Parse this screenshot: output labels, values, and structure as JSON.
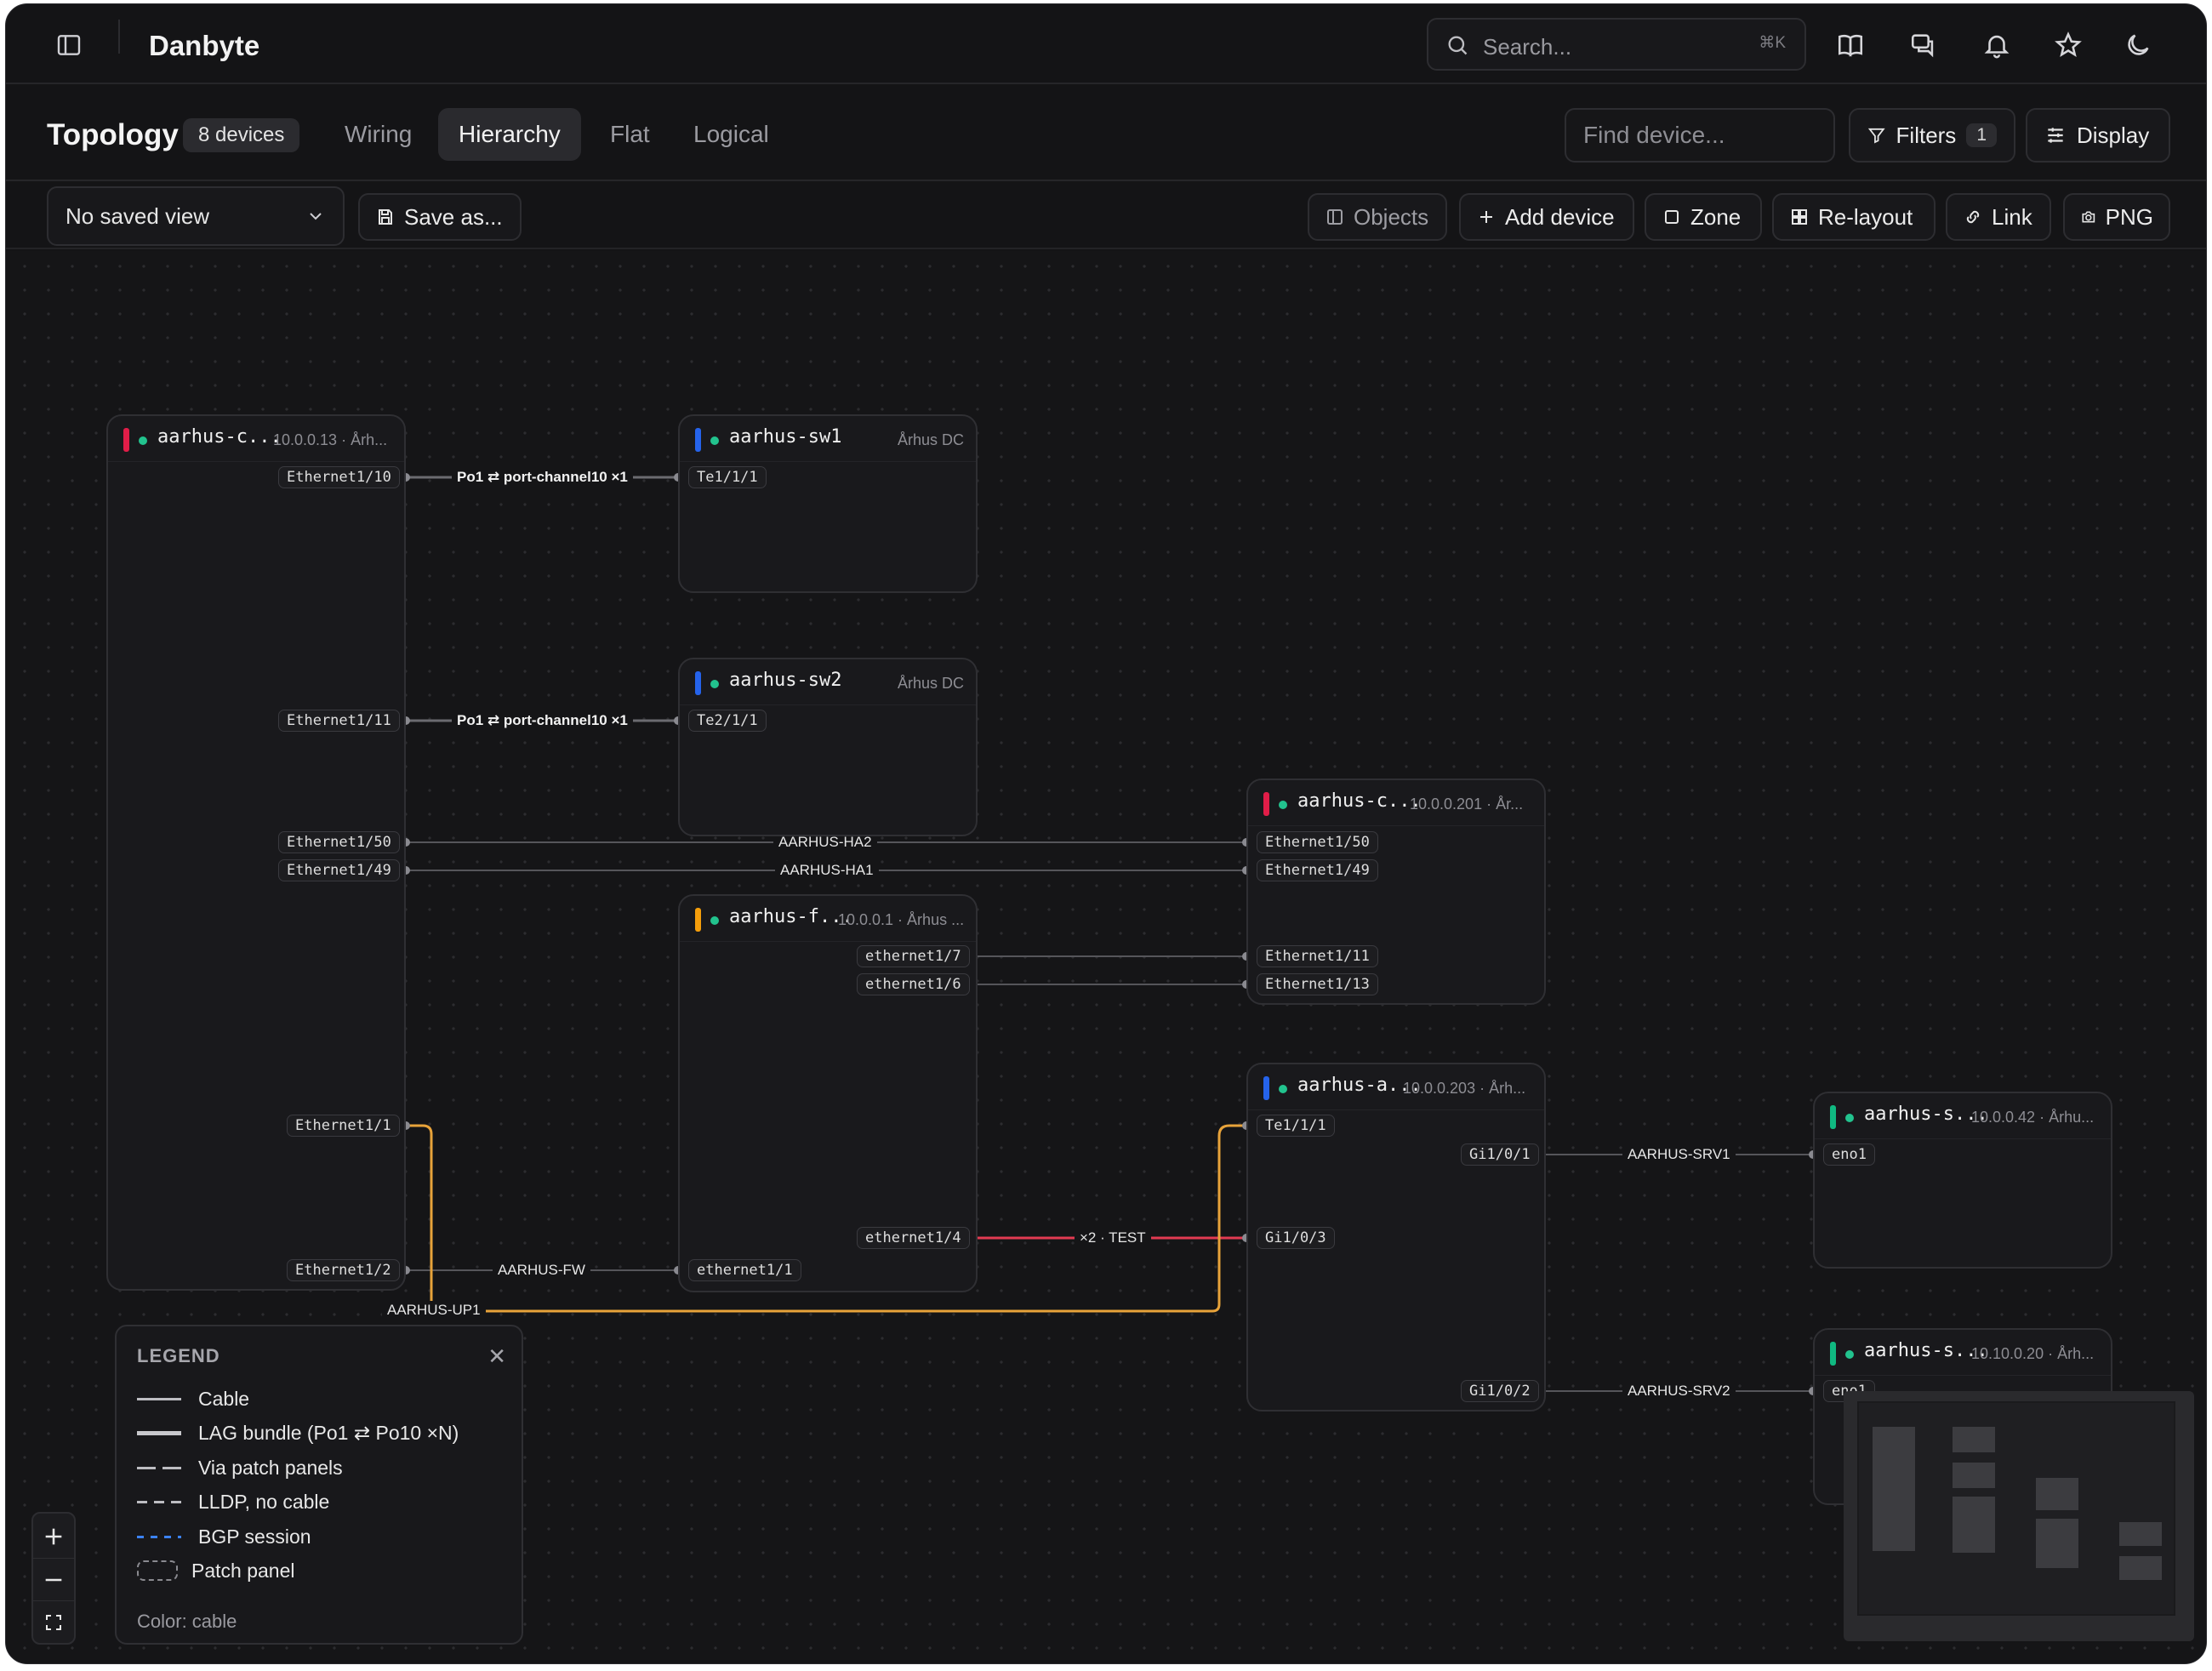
{
  "app": {
    "brand": "Danbyte",
    "search_placeholder": "Search...",
    "search_shortcut": "⌘K"
  },
  "header": {
    "title": "Topology",
    "device_count": "8 devices",
    "tabs": [
      {
        "label": "Wiring",
        "active": false
      },
      {
        "label": "Hierarchy",
        "active": true
      },
      {
        "label": "Flat",
        "active": false
      },
      {
        "label": "Logical",
        "active": false
      }
    ],
    "find_placeholder": "Find device...",
    "filters_label": "Filters",
    "filters_count": "1",
    "display_label": "Display"
  },
  "toolbar": {
    "saved_view": "No saved view",
    "save_as": "Save as...",
    "objects": "Objects",
    "add_device": "Add device",
    "zone": "Zone",
    "relayout": "Re-layout",
    "link": "Link",
    "png": "PNG"
  },
  "nodes": {
    "core1": {
      "name": "aarhus-c...",
      "meta": "10.0.0.13 · Årh...",
      "color": "#e11d48"
    },
    "sw1": {
      "name": "aarhus-sw1",
      "meta": "Århus DC",
      "color": "#2563eb"
    },
    "sw2": {
      "name": "aarhus-sw2",
      "meta": "Århus DC",
      "color": "#2563eb"
    },
    "fw": {
      "name": "aarhus-f...",
      "meta": "10.0.0.1 · Århus ...",
      "color": "#f59e0b"
    },
    "core2": {
      "name": "aarhus-c...",
      "meta": "10.0.0.201 · År...",
      "color": "#e11d48"
    },
    "access": {
      "name": "aarhus-a...",
      "meta": "10.0.0.203 · Årh...",
      "color": "#2563eb"
    },
    "srv1": {
      "name": "aarhus-s...",
      "meta": "10.0.0.42 · Århu...",
      "color": "#10b981"
    },
    "srv2": {
      "name": "aarhus-s...",
      "meta": "10.10.0.20 · Årh...",
      "color": "#10b981"
    }
  },
  "ports": {
    "core1_e110": "Ethernet1/10",
    "core1_e111": "Ethernet1/11",
    "core1_e150": "Ethernet1/50",
    "core1_e149": "Ethernet1/49",
    "core1_e11": "Ethernet1/1",
    "core1_e12": "Ethernet1/2",
    "sw1_te": "Te1/1/1",
    "sw2_te": "Te2/1/1",
    "fw_e17": "ethernet1/7",
    "fw_e16": "ethernet1/6",
    "fw_e14": "ethernet1/4",
    "fw_e11": "ethernet1/1",
    "core2_e150": "Ethernet1/50",
    "core2_e149": "Ethernet1/49",
    "core2_e111": "Ethernet1/11",
    "core2_e113": "Ethernet1/13",
    "acc_te": "Te1/1/1",
    "acc_gi01": "Gi1/0/1",
    "acc_gi03": "Gi1/0/3",
    "acc_gi02": "Gi1/0/2",
    "srv1_eno": "eno1",
    "srv2_eno": "eno1"
  },
  "edge_labels": {
    "lag1": "Po1 ⇄ port-channel10 ×1",
    "lag2": "Po1 ⇄ port-channel10 ×1",
    "ha2": "AARHUS-HA2",
    "ha1": "AARHUS-HA1",
    "fw": "AARHUS-FW",
    "test": "×2 · TEST",
    "up1": "AARHUS-UP1",
    "srv1": "AARHUS-SRV1",
    "srv2": "AARHUS-SRV2"
  },
  "edge_colors": {
    "cable": "#6b6b70",
    "uplink": "#e8a33a",
    "test": "#e23a52"
  },
  "legend": {
    "title": "LEGEND",
    "items": [
      {
        "label": "Cable"
      },
      {
        "label": "LAG bundle (Po1 ⇄ Po10 ×N)"
      },
      {
        "label": "Via patch panels"
      },
      {
        "label": "LLDP, no cable"
      },
      {
        "label": "BGP session"
      },
      {
        "label": "Patch panel"
      }
    ],
    "footer": "Color: cable"
  }
}
